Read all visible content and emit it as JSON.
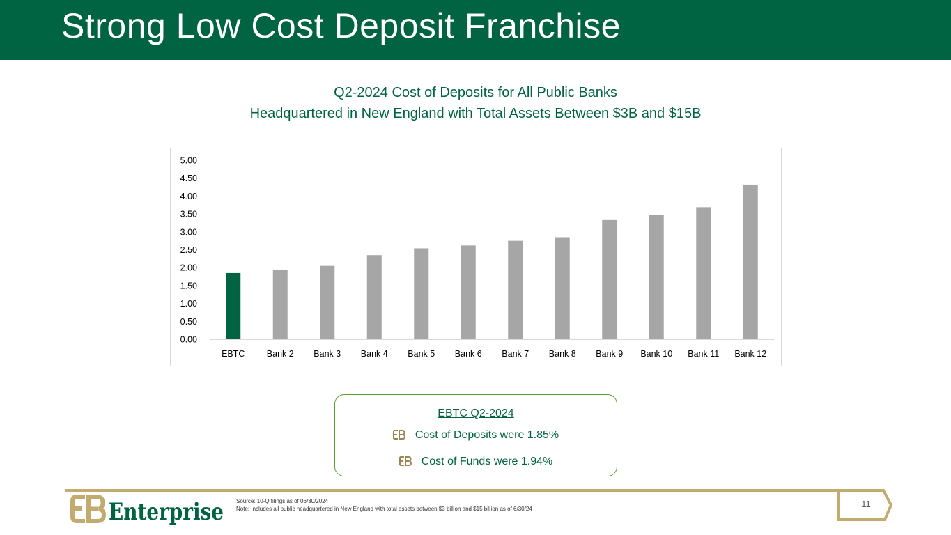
{
  "slide": {
    "title": "Strong Low Cost Deposit Franchise",
    "page_number": "11"
  },
  "chart_heading": {
    "line1": "Q2-2024 Cost of Deposits for All Public Banks",
    "line2": "Headquartered in New England with Total Assets Between $3B and $15B"
  },
  "chart_data": {
    "type": "bar",
    "title": "Q2-2024 Cost of Deposits for All Public Banks Headquartered in New England with Total Assets Between $3B and $15B",
    "categories": [
      "EBTC",
      "Bank 2",
      "Bank 3",
      "Bank 4",
      "Bank 5",
      "Bank 6",
      "Bank 7",
      "Bank 8",
      "Bank 9",
      "Bank 10",
      "Bank 11",
      "Bank 12"
    ],
    "values": [
      1.85,
      1.93,
      2.05,
      2.35,
      2.54,
      2.62,
      2.75,
      2.85,
      3.33,
      3.48,
      3.69,
      4.32
    ],
    "ylim": [
      0,
      5
    ],
    "ytick_step": 0.5,
    "yticks": [
      "0.00",
      "0.50",
      "1.00",
      "1.50",
      "2.00",
      "2.50",
      "3.00",
      "3.50",
      "4.00",
      "4.50",
      "5.00"
    ],
    "xlabel": "",
    "ylabel": "",
    "grid": false,
    "highlight_category": "EBTC",
    "colors": {
      "highlight": "#006341",
      "default": "#a6a6a6"
    }
  },
  "callout": {
    "heading": "EBTC Q2-2024",
    "bullets": [
      "Cost of Deposits were 1.85%",
      "Cost of Funds were 1.94%"
    ],
    "bullet_icon": "eb-monogram-icon"
  },
  "footer": {
    "logo_text": "Enterprise",
    "source": "Source: 10-Q filings as of 06/30/2024",
    "note": "Note: Includes all public headquartered in New England with total assets between $3 billion and $15 billion as of 6/30/24"
  },
  "colors": {
    "brand_green": "#006341",
    "gold": "#c2ab6e",
    "callout_border": "#5aa02c",
    "bar_gray": "#a6a6a6"
  }
}
